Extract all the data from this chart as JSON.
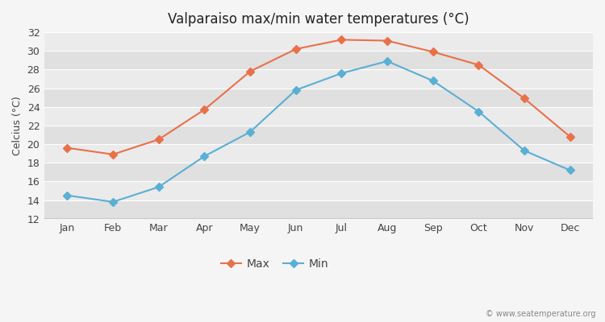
{
  "months": [
    "Jan",
    "Feb",
    "Mar",
    "Apr",
    "May",
    "Jun",
    "Jul",
    "Aug",
    "Sep",
    "Oct",
    "Nov",
    "Dec"
  ],
  "max_temps": [
    19.6,
    18.9,
    20.5,
    23.7,
    27.8,
    30.2,
    31.2,
    31.1,
    29.9,
    28.5,
    24.9,
    20.8
  ],
  "min_temps": [
    14.5,
    13.8,
    15.4,
    18.7,
    21.3,
    25.8,
    27.6,
    28.9,
    26.8,
    23.5,
    19.3,
    17.2
  ],
  "max_color": "#e8714a",
  "min_color": "#5aafd4",
  "title": "Valparaiso max/min water temperatures (°C)",
  "ylabel": "Celcius (°C)",
  "ylim": [
    12,
    32
  ],
  "yticks": [
    12,
    14,
    16,
    18,
    20,
    22,
    24,
    26,
    28,
    30,
    32
  ],
  "band_light": "#ebebeb",
  "band_dark": "#e0e0e0",
  "outer_background": "#f5f5f5",
  "grid_line_color": "#ffffff",
  "bottom_bar_color": "#c8c8c8",
  "title_fontsize": 12,
  "axis_fontsize": 9,
  "legend_fontsize": 10,
  "watermark": "© www.seatemperature.org"
}
